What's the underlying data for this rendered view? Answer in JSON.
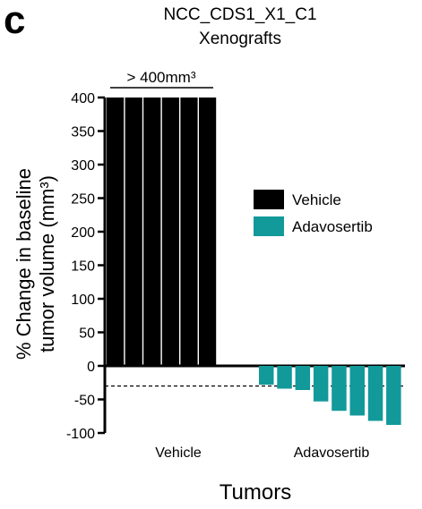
{
  "panel_label": "c",
  "chart_data": {
    "type": "bar",
    "title": "NCC_CDS1_X1_C1",
    "subtitle": "Xenografts",
    "xlabel": "Tumors",
    "ylabel": "% Change in baseline tumor volume (mm³)",
    "ylim": [
      -100,
      400
    ],
    "yticks": [
      400,
      350,
      300,
      250,
      200,
      150,
      100,
      50,
      0,
      -50,
      -100
    ],
    "groups": [
      "Vehicle",
      "Adavosertib"
    ],
    "threshold": -30,
    "annotation": "> 400mm³",
    "legend": {
      "position": "right",
      "entries": [
        {
          "name": "Vehicle",
          "color": "#000000"
        },
        {
          "name": "Adavosertib",
          "color": "#12999a"
        }
      ]
    },
    "series": [
      {
        "name": "Vehicle",
        "color": "#000000",
        "values": [
          400,
          400,
          400,
          400,
          400,
          400
        ]
      },
      {
        "name": "Adavosertib",
        "color": "#12999a",
        "values": [
          -28,
          -34,
          -36,
          -53,
          -67,
          -74,
          -82,
          -88
        ]
      }
    ]
  }
}
